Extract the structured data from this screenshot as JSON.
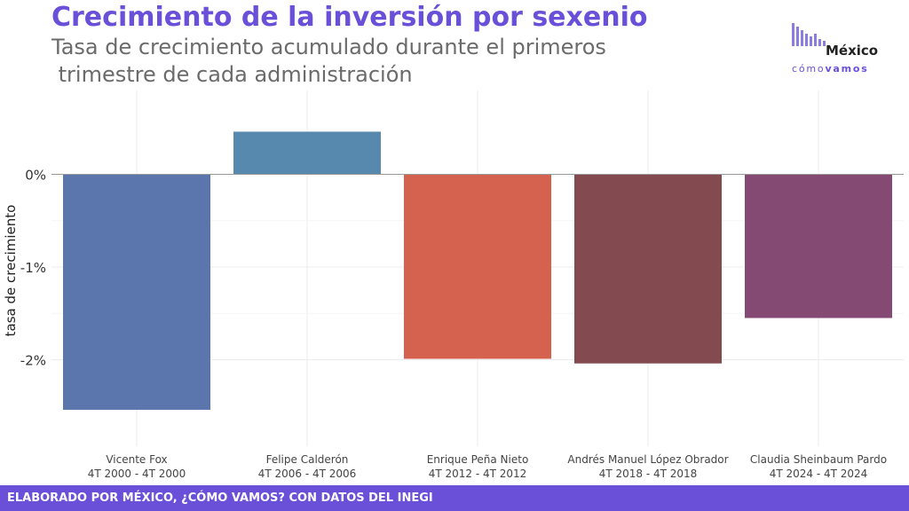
{
  "chart_data": {
    "type": "bar",
    "title": "Crecimiento de la inversión por sexenio",
    "subtitle_lines": [
      "Tasa de crecimiento acumulado durante el primeros",
      " trimestre de cada administración"
    ],
    "ylabel": "tasa de crecimiento",
    "xlabel": "",
    "categories": [
      {
        "name": "Vicente Fox",
        "period": "4T 2000 - 4T 2000"
      },
      {
        "name": "Felipe Calderón",
        "period": "4T 2006 - 4T 2006"
      },
      {
        "name": "Enrique Peña Nieto",
        "period": "4T 2012 - 4T 2012"
      },
      {
        "name": "Andrés Manuel López Obrador",
        "period": "4T 2018 - 4T 2018"
      },
      {
        "name": "Claudia Sheinbaum Pardo",
        "period": "4T 2024 - 4T 2024"
      }
    ],
    "values": [
      -2.54,
      0.46,
      -1.99,
      -2.04,
      -1.55
    ],
    "colors": [
      "#5a76ad",
      "#5788ad",
      "#d5614f",
      "#834a50",
      "#854a73"
    ],
    "y_ticks": [
      {
        "value": 0,
        "label": "0%"
      },
      {
        "value": -1,
        "label": "-1%"
      },
      {
        "value": -2,
        "label": "-2%"
      }
    ],
    "ylim": [
      -2.9,
      0.85
    ],
    "grid": true,
    "legend": "none"
  },
  "logo": {
    "word": "México",
    "sub_light": "cómo",
    "sub_bold": "vamos",
    "bar_color": "#8b7de0"
  },
  "footer": {
    "text": "ELABORADO POR MÉXICO, ¿CÓMO VAMOS? CON DATOS DEL INEGI",
    "color": "#6a4fd8"
  }
}
